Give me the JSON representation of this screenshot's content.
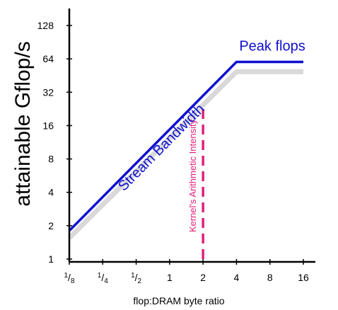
{
  "chart_data": {
    "type": "line",
    "title": "",
    "xlabel": "flop:DRAM byte ratio",
    "ylabel": "attainable Gflop/s",
    "xscale": "log2",
    "yscale": "log2",
    "xlim": [
      0.125,
      16
    ],
    "ylim": [
      1,
      128
    ],
    "xticks": [
      {
        "value": 0.125,
        "num": "1",
        "den": "8",
        "label": ""
      },
      {
        "value": 0.25,
        "num": "1",
        "den": "4",
        "label": ""
      },
      {
        "value": 0.5,
        "num": "1",
        "den": "2",
        "label": ""
      },
      {
        "value": 1,
        "label": "1"
      },
      {
        "value": 2,
        "label": "2"
      },
      {
        "value": 4,
        "label": "4"
      },
      {
        "value": 8,
        "label": "8"
      },
      {
        "value": 16,
        "label": "16"
      }
    ],
    "yticks": [
      {
        "value": 1,
        "label": "1"
      },
      {
        "value": 2,
        "label": "2"
      },
      {
        "value": 4,
        "label": "4"
      },
      {
        "value": 8,
        "label": "8"
      },
      {
        "value": 16,
        "label": "16"
      },
      {
        "value": 32,
        "label": "32"
      },
      {
        "value": 64,
        "label": "64"
      },
      {
        "value": 128,
        "label": "128"
      }
    ],
    "series": [
      {
        "name": "",
        "color": "#1010d0",
        "role": "roofline",
        "points": [
          [
            0.125,
            1.8
          ],
          [
            4,
            60
          ],
          [
            16,
            60
          ]
        ]
      },
      {
        "name": "",
        "color": "#d9d9d9",
        "role": "roofline-shadow",
        "points": [
          [
            0.125,
            1.55
          ],
          [
            4,
            49
          ],
          [
            16,
            49
          ]
        ]
      }
    ],
    "annotations": [
      {
        "text": "Stream Bandwidth",
        "color": "#1010d0",
        "x": 0.9,
        "y": 9.5,
        "rotate_along": "roofline"
      },
      {
        "text": "Peak flops",
        "color": "#1010d0",
        "x": 8.4,
        "y": 76
      }
    ],
    "vline": {
      "x": 2,
      "y_from": 1,
      "y_to": 25,
      "color": "#e0207a",
      "style": "dashed",
      "label": "Kernel's Arithmetic Intensity"
    },
    "grid": false,
    "legend": "none"
  },
  "colors": {
    "axis": "#000000",
    "roofline": "#1010d0",
    "shadow": "#d9d9d9",
    "kernel": "#e0207a"
  }
}
